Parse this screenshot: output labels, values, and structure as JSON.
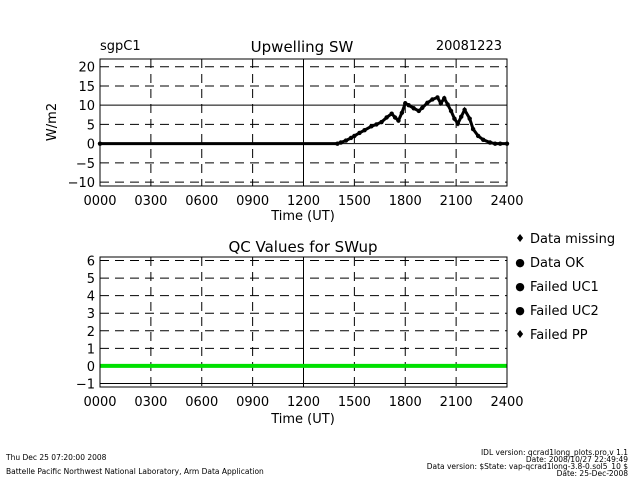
{
  "chart_data": [
    {
      "type": "scatter",
      "station": "sgpC1",
      "title": "Upwelling SW",
      "date": "20081223",
      "xlabel": "Time (UT)",
      "ylabel": "W/m2",
      "xlim": [
        0,
        24
      ],
      "ylim": [
        -11,
        22
      ],
      "xticks": [
        0,
        3,
        6,
        9,
        12,
        15,
        18,
        21,
        24
      ],
      "xtick_labels": [
        "0000",
        "0300",
        "0600",
        "0900",
        "1200",
        "1500",
        "1800",
        "2100",
        "2400"
      ],
      "yticks": [
        -10,
        -5,
        0,
        5,
        10,
        15,
        20
      ],
      "ytick_labels": [
        "−10",
        "−5",
        "0",
        "5",
        "10",
        "15",
        "20"
      ],
      "grid": true,
      "series": [
        {
          "name": "SWup",
          "x": [
            0,
            14.0,
            14.2,
            14.5,
            14.8,
            15.0,
            15.3,
            15.6,
            16.0,
            16.3,
            16.6,
            16.9,
            17.2,
            17.4,
            17.6,
            17.8,
            18.0,
            18.2,
            18.5,
            18.8,
            19.0,
            19.3,
            19.6,
            19.9,
            20.1,
            20.3,
            20.5,
            20.7,
            20.9,
            21.1,
            21.3,
            21.5,
            21.8,
            22.0,
            22.3,
            22.6,
            23.0,
            23.3,
            23.6,
            24.0
          ],
          "y": [
            0,
            0,
            0.3,
            0.8,
            1.5,
            2.0,
            2.8,
            3.5,
            4.5,
            5.0,
            5.6,
            6.8,
            7.8,
            6.8,
            6.0,
            8.0,
            10.5,
            10.0,
            9.2,
            8.5,
            9.3,
            10.6,
            11.5,
            12.0,
            10.5,
            11.8,
            10.2,
            8.5,
            6.5,
            5.2,
            7.0,
            8.8,
            6.5,
            3.8,
            2.0,
            1.0,
            0.3,
            0,
            0,
            0
          ]
        }
      ]
    },
    {
      "type": "scatter",
      "title": "QC Values for SWup",
      "xlabel": "Time (UT)",
      "ylabel": "",
      "xlim": [
        0,
        24
      ],
      "ylim": [
        -1.2,
        6.2
      ],
      "xticks": [
        0,
        3,
        6,
        9,
        12,
        15,
        18,
        21,
        24
      ],
      "xtick_labels": [
        "0000",
        "0300",
        "0600",
        "0900",
        "1200",
        "1500",
        "1800",
        "2100",
        "2400"
      ],
      "yticks": [
        -1,
        0,
        1,
        2,
        3,
        4,
        5,
        6
      ],
      "ytick_labels": [
        "−1",
        "0",
        "1",
        "2",
        "3",
        "4",
        "5",
        "6"
      ],
      "grid": true,
      "series": [
        {
          "name": "Data OK",
          "x": [
            0,
            24
          ],
          "y": [
            0,
            0
          ],
          "color": "#00e000"
        }
      ]
    }
  ],
  "legend": [
    {
      "label": "Data missing",
      "color": "#000000",
      "symbol": "♦"
    },
    {
      "label": "Data OK",
      "color": "#00e000",
      "symbol": "●"
    },
    {
      "label": "Failed UC1",
      "color": "#e8e800",
      "symbol": "●"
    },
    {
      "label": "Failed UC2",
      "color": "#ff8000",
      "symbol": "●"
    },
    {
      "label": "Failed PP",
      "color": "#ff0000",
      "symbol": "♦"
    }
  ],
  "footer": {
    "timestamp": "Thu Dec 25 07:20:00 2008",
    "institution": "Battelle Pacific Northwest National Laboratory, Arm Data Application",
    "idl_version": "IDL version: qcrad1long_plots.pro,v 1.1",
    "idl_date": "Date: 2008/10/27 22:49:49",
    "data_version": "Data version: $State: vap-qcrad1long-3.8-0.sol5_10 $",
    "data_date": "Date: 25-Dec-2008"
  }
}
